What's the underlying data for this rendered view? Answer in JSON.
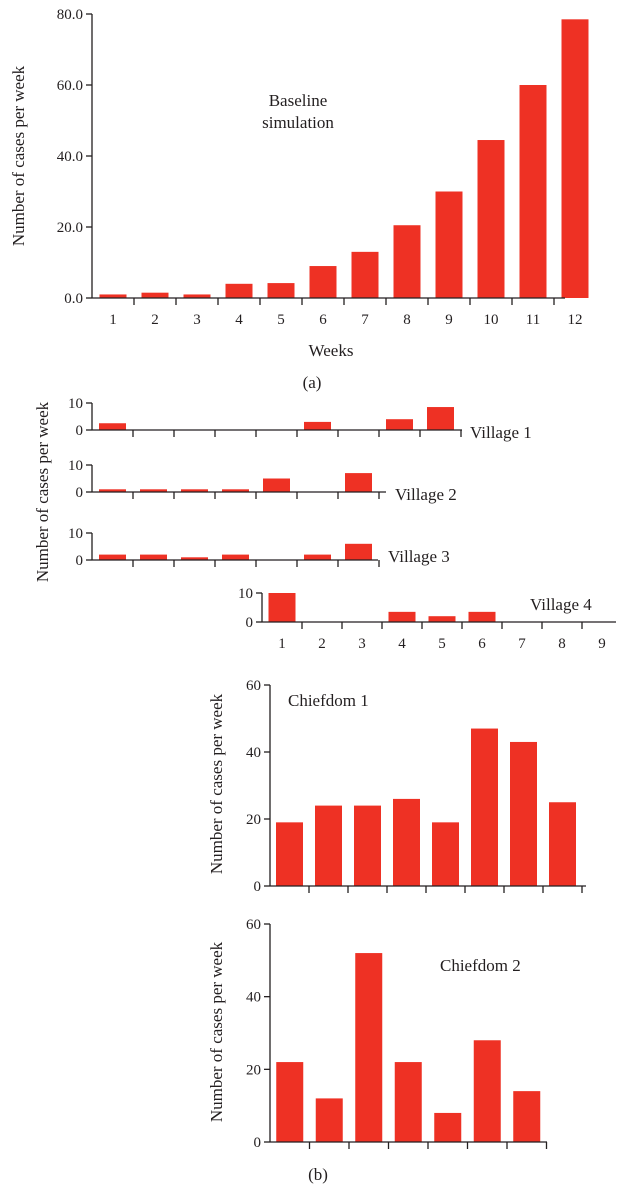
{
  "theme": {
    "bar_color": "#ee3124",
    "axis_color": "#231f20"
  },
  "figure": {
    "panel_a_label": "(a)",
    "panel_b_label": "(b)",
    "villages_ylabel": "Number of cases per week"
  },
  "chart_data": [
    {
      "id": "baseline",
      "type": "bar",
      "annotation": [
        "Baseline",
        "simulation"
      ],
      "xlabel": "Weeks",
      "ylabel": "Number of cases per week",
      "categories": [
        "1",
        "2",
        "3",
        "4",
        "5",
        "6",
        "7",
        "8",
        "9",
        "10",
        "11",
        "12"
      ],
      "values": [
        1.0,
        1.5,
        1.0,
        4.0,
        4.2,
        9.0,
        13.0,
        20.5,
        30.0,
        44.5,
        60.0,
        78.5
      ],
      "ylim": [
        0,
        80
      ],
      "yticks": [
        "0.0",
        "20.0",
        "40.0",
        "60.0",
        "80.0"
      ],
      "grid": false
    },
    {
      "id": "village-1",
      "type": "bar",
      "annotation": [
        "Village 1"
      ],
      "ylim": [
        0,
        10
      ],
      "yticks": [
        "0",
        "10"
      ],
      "values": [
        2.5,
        0,
        0,
        0,
        0,
        3.0,
        0,
        4.0,
        8.5
      ],
      "grid": false
    },
    {
      "id": "village-2",
      "type": "bar",
      "annotation": [
        "Village 2"
      ],
      "ylim": [
        0,
        10
      ],
      "yticks": [
        "0",
        "10"
      ],
      "values": [
        1.0,
        1.0,
        1.0,
        1.0,
        5.0,
        0,
        7.0
      ],
      "grid": false
    },
    {
      "id": "village-3",
      "type": "bar",
      "annotation": [
        "Village 3"
      ],
      "ylim": [
        0,
        10
      ],
      "yticks": [
        "0",
        "10"
      ],
      "values": [
        2.0,
        2.0,
        1.0,
        2.0,
        0,
        2.0,
        6.0
      ],
      "grid": false
    },
    {
      "id": "village-4",
      "type": "bar",
      "annotation": [
        "Village 4"
      ],
      "categories": [
        "1",
        "2",
        "3",
        "4",
        "5",
        "6",
        "7",
        "8",
        "9"
      ],
      "ylim": [
        0,
        10
      ],
      "yticks": [
        "0",
        "10"
      ],
      "values": [
        10.0,
        0,
        0,
        3.5,
        2.0,
        3.5,
        0,
        0,
        0
      ],
      "grid": false
    },
    {
      "id": "chiefdom-1",
      "type": "bar",
      "annotation": [
        "Chiefdom 1"
      ],
      "ylabel": "Number of cases per week",
      "ylim": [
        0,
        60
      ],
      "yticks": [
        "0",
        "20",
        "40",
        "60"
      ],
      "values": [
        19,
        24,
        24,
        26,
        19,
        47,
        43,
        25
      ],
      "grid": false
    },
    {
      "id": "chiefdom-2",
      "type": "bar",
      "annotation": [
        "Chiefdom 2"
      ],
      "ylabel": "Number of cases per week",
      "ylim": [
        0,
        60
      ],
      "yticks": [
        "0",
        "20",
        "40",
        "60"
      ],
      "values": [
        22,
        12,
        52,
        22,
        8,
        28,
        14
      ],
      "grid": false
    }
  ]
}
